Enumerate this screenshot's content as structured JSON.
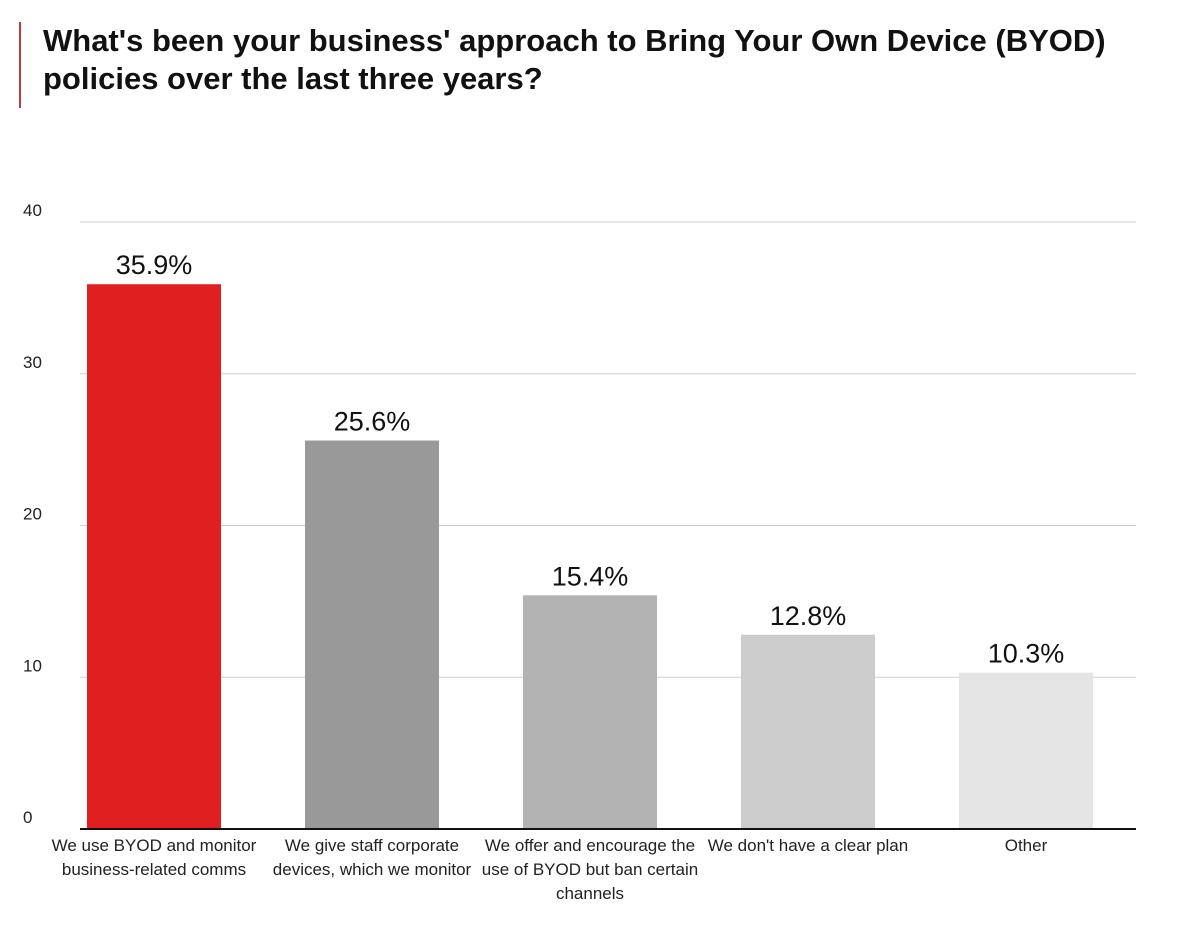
{
  "title": "What's been your business' approach to Bring Your Own Device (BYOD) policies over the last three years?",
  "chart_data": {
    "type": "bar",
    "categories": [
      "We use BYOD and monitor business-related comms",
      "We give staff corporate devices, which we monitor",
      "We offer and encourage the use of BYOD but ban certain channels",
      "We don't have a clear plan",
      "Other"
    ],
    "values": [
      35.9,
      25.6,
      15.4,
      12.8,
      10.3
    ],
    "data_labels": [
      "35.9%",
      "25.6%",
      "15.4%",
      "12.8%",
      "10.3%"
    ],
    "colors": [
      "#e02020",
      "#999999",
      "#b3b3b3",
      "#cccccc",
      "#e5e5e5"
    ],
    "yticks": [
      "0",
      "10",
      "20",
      "30",
      "40"
    ],
    "ylim": [
      0,
      40
    ],
    "grid": true,
    "legend": "none"
  }
}
